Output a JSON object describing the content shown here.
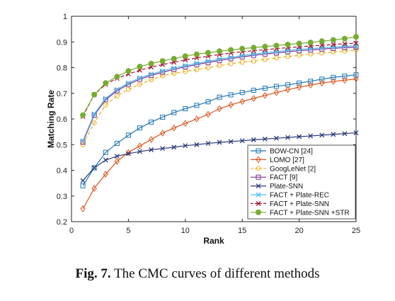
{
  "caption": {
    "label": "Fig. 7.",
    "text": "The CMC curves of different methods"
  },
  "chart_data": {
    "type": "line",
    "title": "",
    "xlabel": "Rank",
    "ylabel": "Matching Rate",
    "xlim": [
      0,
      25
    ],
    "ylim": [
      0.2,
      1
    ],
    "xticks": [
      0,
      5,
      10,
      15,
      20,
      25
    ],
    "yticks": [
      0.2,
      0.3,
      0.4,
      0.5,
      0.6,
      0.7,
      0.8,
      0.9,
      1
    ],
    "grid": false,
    "legend_position": "bottom-right",
    "x": [
      1,
      2,
      3,
      4,
      5,
      6,
      7,
      8,
      9,
      10,
      11,
      12,
      13,
      14,
      15,
      16,
      17,
      18,
      19,
      20,
      21,
      22,
      23,
      24,
      25
    ],
    "series": [
      {
        "name": "BOW-CN [24]",
        "color": "#1f77b4",
        "marker": "square",
        "dash": "solid",
        "values": [
          0.34,
          0.41,
          0.47,
          0.505,
          0.537,
          0.565,
          0.588,
          0.607,
          0.625,
          0.64,
          0.653,
          0.667,
          0.685,
          0.694,
          0.703,
          0.712,
          0.72,
          0.727,
          0.733,
          0.74,
          0.747,
          0.755,
          0.762,
          0.767,
          0.772
        ]
      },
      {
        "name": "LOMO [27]",
        "color": "#d95319",
        "marker": "diamond",
        "dash": "solid",
        "values": [
          0.25,
          0.33,
          0.385,
          0.435,
          0.47,
          0.495,
          0.52,
          0.545,
          0.565,
          0.583,
          0.6,
          0.618,
          0.64,
          0.655,
          0.668,
          0.68,
          0.692,
          0.703,
          0.714,
          0.724,
          0.732,
          0.74,
          0.746,
          0.751,
          0.756
        ]
      },
      {
        "name": "GoogLeNet [2]",
        "color": "#edb120",
        "marker": "circle",
        "dash": "dashed",
        "values": [
          0.5,
          0.585,
          0.655,
          0.69,
          0.715,
          0.735,
          0.753,
          0.768,
          0.778,
          0.785,
          0.792,
          0.8,
          0.808,
          0.815,
          0.821,
          0.826,
          0.832,
          0.838,
          0.843,
          0.848,
          0.853,
          0.857,
          0.861,
          0.864,
          0.868
        ]
      },
      {
        "name": "FACT [9]",
        "color": "#7e2f8e",
        "marker": "square",
        "dash": "solid",
        "values": [
          0.51,
          0.615,
          0.675,
          0.71,
          0.735,
          0.755,
          0.77,
          0.782,
          0.793,
          0.803,
          0.812,
          0.82,
          0.828,
          0.835,
          0.842,
          0.848,
          0.853,
          0.857,
          0.862,
          0.866,
          0.869,
          0.872,
          0.875,
          0.878,
          0.88
        ]
      },
      {
        "name": "Plate-SNN",
        "color": "#2b3a7a",
        "marker": "x",
        "dash": "solid",
        "values": [
          0.36,
          0.41,
          0.44,
          0.455,
          0.465,
          0.473,
          0.48,
          0.485,
          0.49,
          0.496,
          0.5,
          0.505,
          0.509,
          0.512,
          0.515,
          0.519,
          0.522,
          0.525,
          0.528,
          0.531,
          0.534,
          0.537,
          0.54,
          0.543,
          0.546
        ]
      },
      {
        "name": "FACT + Plate-REC",
        "color": "#4dbeee",
        "marker": "x",
        "dash": "solid",
        "values": [
          0.515,
          0.62,
          0.68,
          0.715,
          0.74,
          0.76,
          0.775,
          0.787,
          0.798,
          0.808,
          0.817,
          0.825,
          0.833,
          0.84,
          0.847,
          0.853,
          0.858,
          0.862,
          0.867,
          0.871,
          0.874,
          0.877,
          0.88,
          0.883,
          0.885
        ]
      },
      {
        "name": "FACT + Plate-SNN",
        "color": "#a2142f",
        "marker": "x",
        "dash": "dashed",
        "values": [
          0.61,
          0.695,
          0.735,
          0.758,
          0.775,
          0.79,
          0.802,
          0.812,
          0.821,
          0.83,
          0.838,
          0.845,
          0.851,
          0.857,
          0.862,
          0.866,
          0.87,
          0.874,
          0.878,
          0.881,
          0.884,
          0.887,
          0.89,
          0.893,
          0.895
        ]
      },
      {
        "name": "FACT + Plate-SNN +STR",
        "color": "#77ac30",
        "marker": "filled-circle",
        "dash": "solid",
        "values": [
          0.615,
          0.695,
          0.74,
          0.765,
          0.787,
          0.804,
          0.816,
          0.826,
          0.835,
          0.845,
          0.852,
          0.858,
          0.864,
          0.869,
          0.874,
          0.878,
          0.882,
          0.886,
          0.89,
          0.894,
          0.898,
          0.903,
          0.908,
          0.913,
          0.92
        ]
      }
    ]
  }
}
